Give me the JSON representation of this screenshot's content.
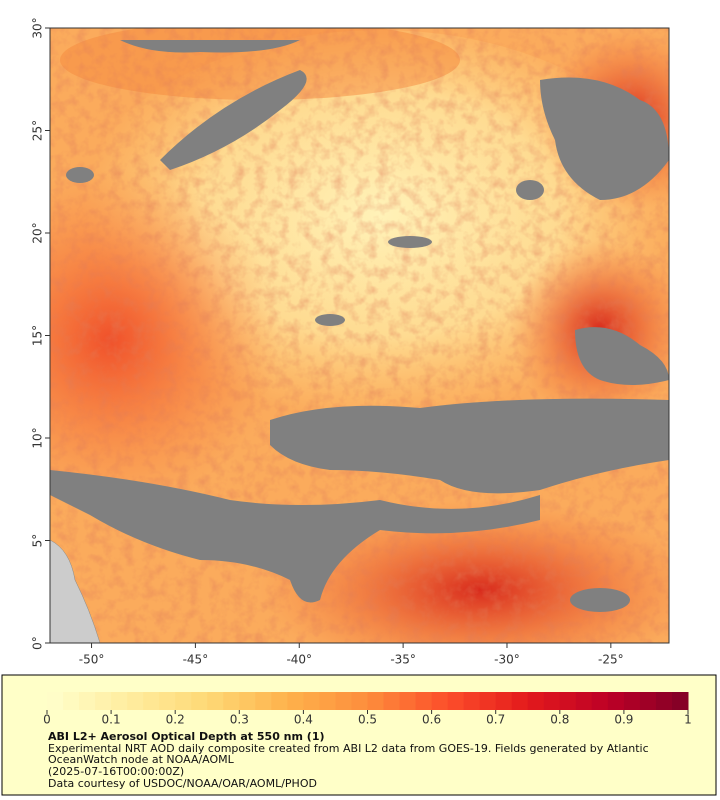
{
  "map": {
    "lonlim": [
      -52,
      -22.2
    ],
    "latlim": [
      0,
      30
    ],
    "lon_ticks": [
      {
        "value": -50,
        "label": "-50°"
      },
      {
        "value": -45,
        "label": "-45°"
      },
      {
        "value": -40,
        "label": "-40°"
      },
      {
        "value": -35,
        "label": "-35°"
      },
      {
        "value": -30,
        "label": "-30°"
      },
      {
        "value": -25,
        "label": "-25°"
      }
    ],
    "lat_ticks": [
      {
        "value": 0,
        "label": "0°"
      },
      {
        "value": 5,
        "label": "5°"
      },
      {
        "value": 10,
        "label": "10°"
      },
      {
        "value": 15,
        "label": "15°"
      },
      {
        "value": 20,
        "label": "20°"
      },
      {
        "value": 25,
        "label": "25°"
      },
      {
        "value": 30,
        "label": "30°"
      }
    ]
  },
  "colorbar": {
    "lim": [
      0,
      1
    ],
    "ticks": [
      0,
      0.1,
      0.2,
      0.3,
      0.4,
      0.5,
      0.6,
      0.7,
      0.8,
      0.9,
      1
    ],
    "colors": [
      "#ffffcc",
      "#ffeda0",
      "#fed976",
      "#feb24c",
      "#fd8d3c",
      "#fc4e2a",
      "#e31a1c",
      "#bd0026",
      "#800026"
    ],
    "steps": 40
  },
  "legend": {
    "title": "ABI L2+ Aerosol Optical Depth at 550 nm (1)",
    "description": "Experimental NRT AOD daily composite created from ABI L2 data from GOES-19. Fields generated by Atlantic OceanWatch node at NOAA/AOML",
    "date": "(2025-07-16T00:00:00Z)",
    "credit": "Data courtesy of USDOC/NOAA/OAR/AOML/PHOD"
  }
}
